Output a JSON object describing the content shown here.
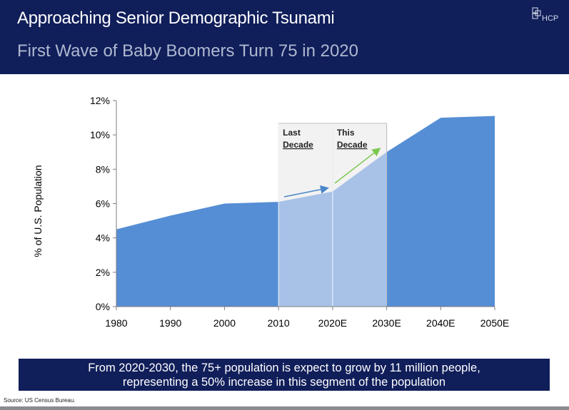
{
  "header": {
    "title": "Approaching Senior Demographic Tsunami",
    "subtitle": "First Wave of Baby Boomers Turn 75 in 2020",
    "logo_text": "HCP",
    "background_color": "#101e5a"
  },
  "chart_data": {
    "type": "area",
    "x": [
      "1980",
      "1990",
      "2000",
      "2010",
      "2020E",
      "2030E",
      "2040E",
      "2050E"
    ],
    "series": [
      {
        "values": [
          4.5,
          5.3,
          6.0,
          6.1,
          6.7,
          9.0,
          11.0,
          11.1
        ]
      }
    ],
    "title": "",
    "xlabel": "",
    "ylabel": "% of U.S. Population",
    "yticks": [
      "0%",
      "2%",
      "4%",
      "6%",
      "8%",
      "10%",
      "12%"
    ],
    "ylim": [
      0,
      12
    ],
    "grid": false,
    "highlight_windows": [
      {
        "label_line1": "Last",
        "label_line2": "Decade",
        "from": "2010",
        "to": "2020E"
      },
      {
        "label_line1": "This",
        "label_line2": "Decade",
        "from": "2020E",
        "to": "2030E"
      }
    ],
    "colors": {
      "area": "#558ed5",
      "area_highlight": "#a7c1e7",
      "window_fill": "#f2f2f2",
      "window_border": "#c0c0c0",
      "arrow_last": "#4a86c8",
      "arrow_this": "#7ec850"
    }
  },
  "callout": {
    "line1": "From 2020-2030, the 75+ population is expect to grow by 11 million people,",
    "line2": "representing a 50% increase in this segment of the population"
  },
  "footer": {
    "source": "Source:  US Census Bureau."
  }
}
